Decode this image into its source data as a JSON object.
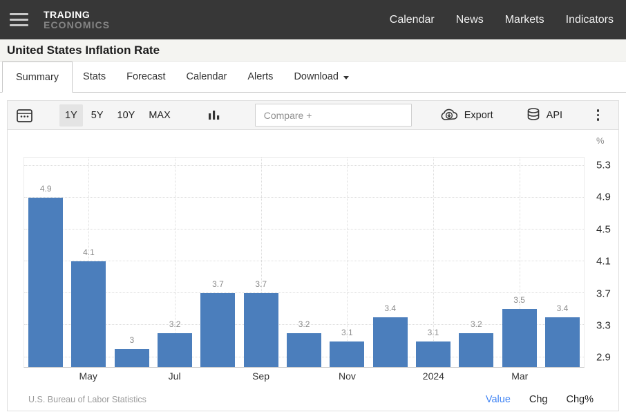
{
  "navbar": {
    "logo_line1": "TRADING",
    "logo_line2": "ECONOMICS",
    "links": [
      "Calendar",
      "News",
      "Markets",
      "Indicators"
    ]
  },
  "page": {
    "title": "United States Inflation Rate"
  },
  "tabs": {
    "items": [
      {
        "label": "Summary",
        "active": true
      },
      {
        "label": "Stats",
        "active": false
      },
      {
        "label": "Forecast",
        "active": false
      },
      {
        "label": "Calendar",
        "active": false
      },
      {
        "label": "Alerts",
        "active": false
      },
      {
        "label": "Download",
        "active": false,
        "has_caret": true
      }
    ]
  },
  "toolbar": {
    "ranges": [
      {
        "label": "1Y",
        "active": true
      },
      {
        "label": "5Y",
        "active": false
      },
      {
        "label": "10Y",
        "active": false
      },
      {
        "label": "MAX",
        "active": false
      }
    ],
    "compare_placeholder": "Compare +",
    "export_label": "Export",
    "api_label": "API"
  },
  "chart_data": {
    "type": "bar",
    "title": "United States Inflation Rate",
    "unit": "%",
    "values": [
      4.9,
      4.1,
      3,
      3.2,
      3.7,
      3.7,
      3.2,
      3.1,
      3.4,
      3.1,
      3.2,
      3.5,
      3.4
    ],
    "x_ticks": [
      {
        "index": 1,
        "label": "May"
      },
      {
        "index": 3,
        "label": "Jul"
      },
      {
        "index": 5,
        "label": "Sep"
      },
      {
        "index": 7,
        "label": "Nov"
      },
      {
        "index": 9,
        "label": "2024"
      },
      {
        "index": 11,
        "label": "Mar"
      }
    ],
    "y_ticks": [
      2.9,
      3.3,
      3.7,
      4.1,
      4.5,
      4.9,
      5.3
    ],
    "ylim": [
      2.775,
      5.4
    ],
    "grid": "dotted",
    "legend": "none",
    "y_axis_side": "right",
    "source": "U.S. Bureau of Labor Statistics"
  },
  "footer": {
    "source": "U.S. Bureau of Labor Statistics",
    "links": [
      {
        "label": "Value",
        "active": true
      },
      {
        "label": "Chg",
        "active": false
      },
      {
        "label": "Chg%",
        "active": false
      }
    ]
  },
  "colors": {
    "bar": "#4b7ebc",
    "navbar_bg": "#373737",
    "active_link_blue": "#4285f4",
    "toolbar_bg": "#f5f5f5",
    "value_label": "#8c8c8c"
  }
}
